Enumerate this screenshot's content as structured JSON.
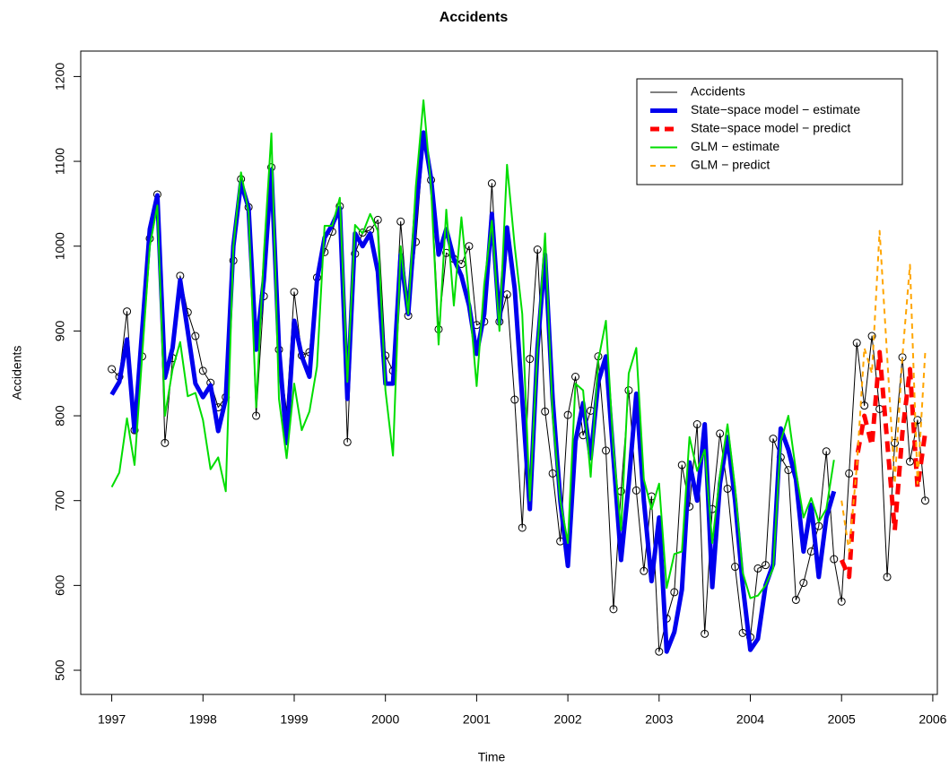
{
  "chart_data": {
    "type": "line",
    "title": "Accidents",
    "xlabel": "Time",
    "ylabel": "Accidents",
    "xlim": [
      1996.66,
      2006.05
    ],
    "ylim": [
      471.5,
      1230
    ],
    "xticks": [
      1997,
      1998,
      1999,
      2000,
      2001,
      2002,
      2003,
      2004,
      2005,
      2006
    ],
    "yticks": [
      500,
      600,
      700,
      800,
      900,
      1000,
      1100,
      1200
    ],
    "legend": "top-right",
    "x": [
      1997,
      1997.083,
      1997.167,
      1997.25,
      1997.333,
      1997.417,
      1997.5,
      1997.583,
      1997.667,
      1997.75,
      1997.833,
      1997.917,
      1998,
      1998.083,
      1998.167,
      1998.25,
      1998.333,
      1998.417,
      1998.5,
      1998.583,
      1998.667,
      1998.75,
      1998.833,
      1998.917,
      1999,
      1999.083,
      1999.167,
      1999.25,
      1999.333,
      1999.417,
      1999.5,
      1999.583,
      1999.667,
      1999.75,
      1999.833,
      1999.917,
      2000,
      2000.083,
      2000.167,
      2000.25,
      2000.333,
      2000.417,
      2000.5,
      2000.583,
      2000.667,
      2000.75,
      2000.833,
      2000.917,
      2001,
      2001.083,
      2001.167,
      2001.25,
      2001.333,
      2001.417,
      2001.5,
      2001.583,
      2001.667,
      2001.75,
      2001.833,
      2001.917,
      2002,
      2002.083,
      2002.167,
      2002.25,
      2002.333,
      2002.417,
      2002.5,
      2002.583,
      2002.667,
      2002.75,
      2002.833,
      2002.917,
      2003,
      2003.083,
      2003.167,
      2003.25,
      2003.333,
      2003.417,
      2003.5,
      2003.583,
      2003.667,
      2003.75,
      2003.833,
      2003.917,
      2004,
      2004.083,
      2004.167,
      2004.25,
      2004.333,
      2004.417,
      2004.5,
      2004.583,
      2004.667,
      2004.75,
      2004.833,
      2004.917,
      2005,
      2005.083,
      2005.167,
      2005.25,
      2005.333,
      2005.417,
      2005.5,
      2005.583,
      2005.667,
      2005.75,
      2005.833,
      2005.917
    ],
    "series": [
      {
        "name": "Accidents",
        "color": "#000000",
        "width": 1,
        "dash": false,
        "marker": "circle",
        "values": [
          855,
          846,
          923,
          783,
          870,
          1009,
          1061,
          768,
          868,
          965,
          922,
          894,
          853,
          839,
          810,
          822,
          983,
          1079,
          1046,
          800,
          941,
          1093,
          878,
          805,
          946,
          871,
          875,
          963,
          993,
          1017,
          1047,
          769,
          991,
          1016,
          1019,
          1031,
          871,
          853,
          1029,
          918,
          1005,
          1121,
          1078,
          902,
          992,
          985,
          979,
          1000,
          907,
          911,
          1074,
          911,
          943,
          819,
          668,
          867,
          996,
          805,
          732,
          652,
          801,
          846,
          777,
          806,
          870,
          759,
          572,
          711,
          830,
          712,
          617,
          705,
          522,
          561,
          592,
          742,
          693,
          790,
          543,
          690,
          779,
          714,
          622,
          544,
          539,
          620,
          624,
          773,
          751,
          736,
          583,
          603,
          640,
          670,
          758,
          631,
          581,
          732,
          886,
          812,
          894,
          808,
          610,
          768,
          869,
          746,
          795,
          700
        ]
      },
      {
        "name": "State−space model − estimate",
        "color": "#0000ee",
        "width": 5,
        "dash": false,
        "values": [
          825,
          840,
          890,
          782,
          900,
          1020,
          1060,
          845,
          880,
          960,
          900,
          838,
          822,
          836,
          782,
          820,
          1000,
          1075,
          1045,
          878,
          960,
          1090,
          880,
          768,
          912,
          870,
          846,
          960,
          1010,
          1025,
          1045,
          820,
          1015,
          1000,
          1015,
          970,
          838,
          838,
          990,
          920,
          1040,
          1134,
          1080,
          990,
          1020,
          985,
          965,
          930,
          873,
          920,
          1038,
          910,
          1022,
          950,
          820,
          690,
          880,
          990,
          820,
          700,
          623,
          770,
          815,
          750,
          840,
          870,
          750,
          630,
          720,
          826,
          700,
          605,
          680,
          522,
          545,
          595,
          745,
          700,
          790,
          598,
          720,
          775,
          700,
          600,
          524,
          537,
          600,
          625,
          785,
          760,
          725,
          640,
          695,
          610,
          680,
          711,
          null,
          null,
          null,
          null,
          null,
          null,
          null,
          null,
          null,
          null,
          null,
          null
        ]
      },
      {
        "name": "State−space model − predict",
        "color": "#ff0000",
        "width": 5,
        "dash": true,
        "values": [
          null,
          null,
          null,
          null,
          null,
          null,
          null,
          null,
          null,
          null,
          null,
          null,
          null,
          null,
          null,
          null,
          null,
          null,
          null,
          null,
          null,
          null,
          null,
          null,
          null,
          null,
          null,
          null,
          null,
          null,
          null,
          null,
          null,
          null,
          null,
          null,
          null,
          null,
          null,
          null,
          null,
          null,
          null,
          null,
          null,
          null,
          null,
          null,
          null,
          null,
          null,
          null,
          null,
          null,
          null,
          null,
          null,
          null,
          null,
          null,
          null,
          null,
          null,
          null,
          null,
          null,
          null,
          null,
          null,
          null,
          null,
          null,
          null,
          null,
          null,
          null,
          null,
          null,
          null,
          null,
          null,
          null,
          null,
          null,
          null,
          null,
          null,
          null,
          null,
          null,
          null,
          null,
          null,
          null,
          null,
          null,
          630,
          610,
          750,
          800,
          765,
          875,
          770,
          665,
          780,
          855,
          715,
          780
        ]
      },
      {
        "name": "GLM − estimate",
        "color": "#00dd00",
        "width": 2,
        "dash": false,
        "values": [
          716,
          733,
          797,
          742,
          870,
          1000,
          1048,
          800,
          855,
          887,
          823,
          827,
          795,
          737,
          751,
          711,
          1000,
          1087,
          1040,
          810,
          990,
          1133,
          820,
          750,
          838,
          783,
          805,
          858,
          1024,
          1024,
          1057,
          840,
          1025,
          1015,
          1038,
          1018,
          830,
          753,
          1000,
          920,
          1070,
          1172,
          1070,
          884,
          1043,
          930,
          1034,
          940,
          835,
          955,
          1030,
          900,
          1096,
          1000,
          920,
          700,
          880,
          1015,
          800,
          700,
          650,
          838,
          830,
          728,
          865,
          912,
          760,
          665,
          850,
          880,
          725,
          690,
          720,
          597,
          637,
          640,
          775,
          735,
          760,
          650,
          730,
          790,
          715,
          615,
          585,
          588,
          600,
          620,
          770,
          800,
          735,
          680,
          703,
          675,
          690,
          748,
          null,
          null,
          null,
          null,
          null,
          null,
          null,
          null,
          null,
          null,
          null,
          null
        ]
      },
      {
        "name": "GLM − predict",
        "color": "#ffa500",
        "width": 2,
        "dash": true,
        "values": [
          null,
          null,
          null,
          null,
          null,
          null,
          null,
          null,
          null,
          null,
          null,
          null,
          null,
          null,
          null,
          null,
          null,
          null,
          null,
          null,
          null,
          null,
          null,
          null,
          null,
          null,
          null,
          null,
          null,
          null,
          null,
          null,
          null,
          null,
          null,
          null,
          null,
          null,
          null,
          null,
          null,
          null,
          null,
          null,
          null,
          null,
          null,
          null,
          null,
          null,
          null,
          null,
          null,
          null,
          null,
          null,
          null,
          null,
          null,
          null,
          null,
          null,
          null,
          null,
          null,
          null,
          null,
          null,
          null,
          null,
          null,
          null,
          null,
          null,
          null,
          null,
          null,
          null,
          null,
          null,
          null,
          null,
          null,
          null,
          null,
          null,
          null,
          null,
          null,
          null,
          null,
          null,
          null,
          null,
          null,
          null,
          700,
          640,
          740,
          880,
          850,
          1018,
          870,
          720,
          870,
          978,
          720,
          875
        ]
      }
    ]
  }
}
